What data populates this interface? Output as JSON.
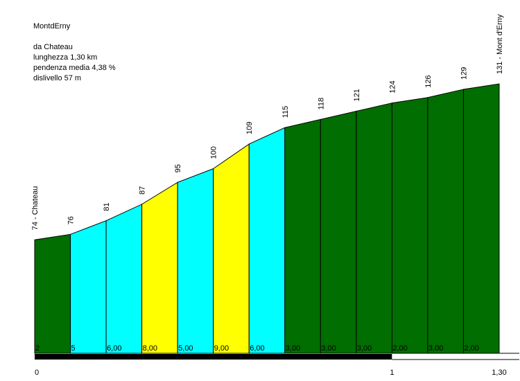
{
  "info": {
    "name": "MontdErny",
    "from": "da Chateau",
    "length": "lunghezza 1,30 km",
    "avg_grade": "pendenza media 4,38 %",
    "elevation_gain": "dislivello 57 m"
  },
  "chart_data": {
    "type": "area",
    "x_ticks": [
      {
        "value": 0,
        "label": "0"
      },
      {
        "value": 1,
        "label": "1"
      },
      {
        "value": 1.3,
        "label": "1,30"
      }
    ],
    "xlim": [
      0,
      1.3
    ],
    "points": [
      {
        "x": 0.0,
        "elev": 74,
        "label": "74 - Chateau"
      },
      {
        "x": 0.1,
        "elev": 76,
        "label": "76"
      },
      {
        "x": 0.2,
        "elev": 81,
        "label": "81"
      },
      {
        "x": 0.3,
        "elev": 87,
        "label": "87"
      },
      {
        "x": 0.4,
        "elev": 95,
        "label": "95"
      },
      {
        "x": 0.5,
        "elev": 100,
        "label": "100"
      },
      {
        "x": 0.6,
        "elev": 109,
        "label": "109"
      },
      {
        "x": 0.7,
        "elev": 115,
        "label": "115"
      },
      {
        "x": 0.8,
        "elev": 118,
        "label": "118"
      },
      {
        "x": 0.9,
        "elev": 121,
        "label": "121"
      },
      {
        "x": 1.0,
        "elev": 124,
        "label": "124"
      },
      {
        "x": 1.1,
        "elev": 126,
        "label": "126"
      },
      {
        "x": 1.2,
        "elev": 129,
        "label": "129"
      },
      {
        "x": 1.3,
        "elev": 131,
        "label": "131 - Mont d'Erny"
      }
    ],
    "segments": [
      {
        "grade": "2",
        "color": "#006e00"
      },
      {
        "grade": "5",
        "color": "#00ffff"
      },
      {
        "grade": "6,00",
        "color": "#00ffff"
      },
      {
        "grade": "8,00",
        "color": "#ffff00"
      },
      {
        "grade": "5,00",
        "color": "#00ffff"
      },
      {
        "grade": "9,00",
        "color": "#ffff00"
      },
      {
        "grade": "6,00",
        "color": "#00ffff"
      },
      {
        "grade": "3,00",
        "color": "#006e00"
      },
      {
        "grade": "3,00",
        "color": "#006e00"
      },
      {
        "grade": "3,00",
        "color": "#006e00"
      },
      {
        "grade": "2,00",
        "color": "#006e00"
      },
      {
        "grade": "3,00",
        "color": "#006e00"
      },
      {
        "grade": "2,00",
        "color": "#006e00"
      }
    ]
  }
}
